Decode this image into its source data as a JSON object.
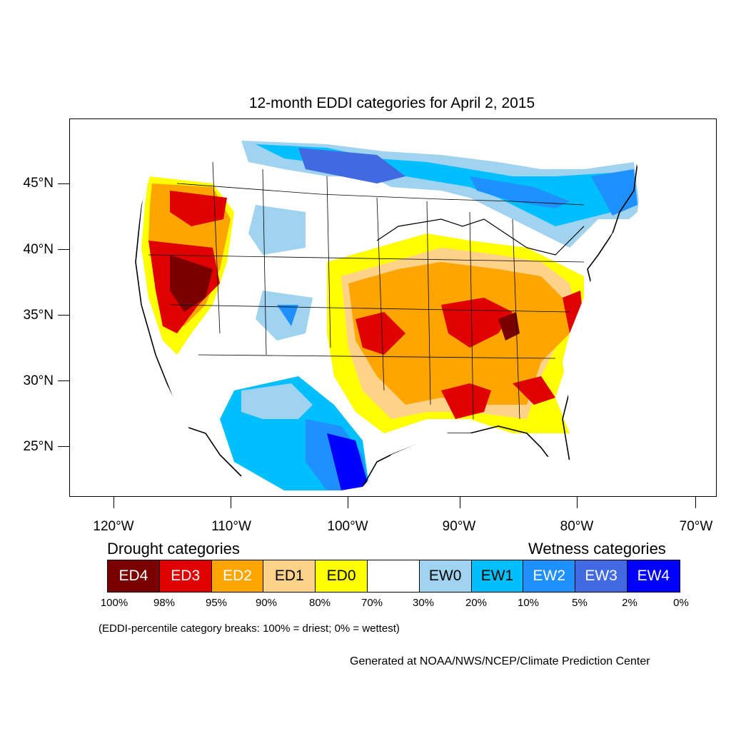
{
  "title": "12-month EDDI categories for April 2, 2015",
  "latitude_labels": [
    "45°N",
    "40°N",
    "35°N",
    "30°N",
    "25°N"
  ],
  "longitude_labels": [
    "120°W",
    "110°W",
    "100°W",
    "90°W",
    "80°W",
    "70°W"
  ],
  "legend": {
    "drought_heading": "Drought categories",
    "wetness_heading": "Wetness categories",
    "categories": [
      {
        "label": "ED4",
        "color": "#7a0000",
        "text_color": "#ffffff"
      },
      {
        "label": "ED3",
        "color": "#e00000",
        "text_color": "#ffffff"
      },
      {
        "label": "ED2",
        "color": "#ffa500",
        "text_color": "#ffffff"
      },
      {
        "label": "ED1",
        "color": "#ffd28a",
        "text_color": "#000000"
      },
      {
        "label": "ED0",
        "color": "#ffff00",
        "text_color": "#000000"
      },
      {
        "label": "",
        "color": "#ffffff",
        "text_color": "#000000"
      },
      {
        "label": "EW0",
        "color": "#9fd3f0",
        "text_color": "#000000"
      },
      {
        "label": "EW1",
        "color": "#00bfff",
        "text_color": "#000000"
      },
      {
        "label": "EW2",
        "color": "#1e90ff",
        "text_color": "#ffffff"
      },
      {
        "label": "EW3",
        "color": "#4169e1",
        "text_color": "#ffffff"
      },
      {
        "label": "EW4",
        "color": "#0000ff",
        "text_color": "#ffffff"
      }
    ],
    "breaks": [
      "100%",
      "98%",
      "95%",
      "90%",
      "80%",
      "70%",
      "30%",
      "20%",
      "10%",
      "5%",
      "2%",
      "0%"
    ]
  },
  "note": "(EDDI-percentile category breaks: 100% = driest; 0% = wettest)",
  "credit": "Generated at NOAA/NWS/NCEP/Climate Prediction Center"
}
